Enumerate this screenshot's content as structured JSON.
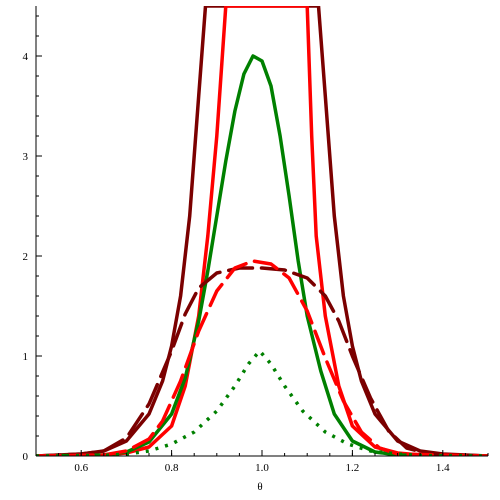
{
  "chart_data": {
    "type": "line",
    "xlabel": "θ",
    "ylabel": "",
    "xlim": [
      0.5,
      1.5
    ],
    "ylim": [
      0,
      4.5
    ],
    "x_ticks": [
      {
        "value": 0.6,
        "label": "0.6"
      },
      {
        "value": 0.8,
        "label": "0.8"
      },
      {
        "value": 1.0,
        "label": "1.0"
      },
      {
        "value": 1.2,
        "label": "1.2"
      },
      {
        "value": 1.4,
        "label": "1.4"
      }
    ],
    "y_ticks": [
      {
        "value": 0,
        "label": "0"
      },
      {
        "value": 1,
        "label": "1"
      },
      {
        "value": 2,
        "label": "2"
      },
      {
        "value": 3,
        "label": "3"
      },
      {
        "value": 4,
        "label": "4"
      }
    ],
    "series": [
      {
        "color": "#7b0000",
        "dash": "solid",
        "width": 3.5,
        "points": [
          [
            0.5,
            0.0
          ],
          [
            0.6,
            0.02
          ],
          [
            0.65,
            0.05
          ],
          [
            0.7,
            0.15
          ],
          [
            0.75,
            0.42
          ],
          [
            0.78,
            0.75
          ],
          [
            0.8,
            1.1
          ],
          [
            0.82,
            1.6
          ],
          [
            0.84,
            2.4
          ],
          [
            0.86,
            3.6
          ],
          [
            0.875,
            4.5
          ],
          [
            1.125,
            4.5
          ],
          [
            1.14,
            3.6
          ],
          [
            1.16,
            2.4
          ],
          [
            1.18,
            1.6
          ],
          [
            1.2,
            1.1
          ],
          [
            1.22,
            0.75
          ],
          [
            1.25,
            0.42
          ],
          [
            1.3,
            0.15
          ],
          [
            1.35,
            0.05
          ],
          [
            1.4,
            0.02
          ],
          [
            1.5,
            0.0
          ]
        ]
      },
      {
        "color": "#ff0000",
        "dash": "solid",
        "width": 3.5,
        "points": [
          [
            0.5,
            0.0
          ],
          [
            0.65,
            0.01
          ],
          [
            0.7,
            0.03
          ],
          [
            0.75,
            0.09
          ],
          [
            0.8,
            0.3
          ],
          [
            0.83,
            0.7
          ],
          [
            0.86,
            1.4
          ],
          [
            0.88,
            2.2
          ],
          [
            0.9,
            3.2
          ],
          [
            0.92,
            4.5
          ],
          [
            1.1,
            4.5
          ],
          [
            1.11,
            3.2
          ],
          [
            1.12,
            2.2
          ],
          [
            1.14,
            1.4
          ],
          [
            1.17,
            0.7
          ],
          [
            1.2,
            0.3
          ],
          [
            1.25,
            0.09
          ],
          [
            1.3,
            0.03
          ],
          [
            1.35,
            0.01
          ],
          [
            1.5,
            0.0
          ]
        ]
      },
      {
        "color": "#008000",
        "dash": "solid",
        "width": 3.5,
        "points": [
          [
            0.5,
            0.0
          ],
          [
            0.65,
            0.01
          ],
          [
            0.7,
            0.04
          ],
          [
            0.75,
            0.14
          ],
          [
            0.8,
            0.42
          ],
          [
            0.83,
            0.78
          ],
          [
            0.86,
            1.35
          ],
          [
            0.88,
            1.85
          ],
          [
            0.9,
            2.4
          ],
          [
            0.92,
            2.95
          ],
          [
            0.94,
            3.45
          ],
          [
            0.96,
            3.82
          ],
          [
            0.98,
            4.0
          ],
          [
            1.0,
            3.95
          ],
          [
            1.02,
            3.7
          ],
          [
            1.04,
            3.2
          ],
          [
            1.06,
            2.6
          ],
          [
            1.08,
            1.95
          ],
          [
            1.1,
            1.4
          ],
          [
            1.13,
            0.85
          ],
          [
            1.16,
            0.42
          ],
          [
            1.2,
            0.15
          ],
          [
            1.25,
            0.04
          ],
          [
            1.3,
            0.01
          ],
          [
            1.5,
            0.0
          ]
        ]
      },
      {
        "color": "#7b0000",
        "dash": "long",
        "width": 3.5,
        "points": [
          [
            0.5,
            0.0
          ],
          [
            0.6,
            0.02
          ],
          [
            0.65,
            0.05
          ],
          [
            0.7,
            0.18
          ],
          [
            0.75,
            0.52
          ],
          [
            0.8,
            1.05
          ],
          [
            0.83,
            1.42
          ],
          [
            0.86,
            1.68
          ],
          [
            0.9,
            1.83
          ],
          [
            0.95,
            1.88
          ],
          [
            1.0,
            1.88
          ],
          [
            1.05,
            1.86
          ],
          [
            1.1,
            1.78
          ],
          [
            1.14,
            1.6
          ],
          [
            1.17,
            1.35
          ],
          [
            1.2,
            1.0
          ],
          [
            1.24,
            0.58
          ],
          [
            1.28,
            0.25
          ],
          [
            1.32,
            0.08
          ],
          [
            1.37,
            0.02
          ],
          [
            1.5,
            0.0
          ]
        ]
      },
      {
        "color": "#ff0000",
        "dash": "long",
        "width": 3.5,
        "points": [
          [
            0.5,
            0.0
          ],
          [
            0.65,
            0.01
          ],
          [
            0.7,
            0.05
          ],
          [
            0.75,
            0.17
          ],
          [
            0.78,
            0.35
          ],
          [
            0.82,
            0.75
          ],
          [
            0.86,
            1.25
          ],
          [
            0.9,
            1.65
          ],
          [
            0.94,
            1.88
          ],
          [
            0.98,
            1.95
          ],
          [
            1.02,
            1.92
          ],
          [
            1.06,
            1.78
          ],
          [
            1.1,
            1.45
          ],
          [
            1.14,
            0.98
          ],
          [
            1.18,
            0.55
          ],
          [
            1.22,
            0.24
          ],
          [
            1.26,
            0.08
          ],
          [
            1.3,
            0.02
          ],
          [
            1.5,
            0.0
          ]
        ]
      },
      {
        "color": "#008000",
        "dash": "dot",
        "width": 3.5,
        "points": [
          [
            0.5,
            0.0
          ],
          [
            0.65,
            0.005
          ],
          [
            0.7,
            0.02
          ],
          [
            0.75,
            0.05
          ],
          [
            0.8,
            0.12
          ],
          [
            0.85,
            0.24
          ],
          [
            0.9,
            0.45
          ],
          [
            0.94,
            0.7
          ],
          [
            0.97,
            0.92
          ],
          [
            0.995,
            1.05
          ],
          [
            1.02,
            0.92
          ],
          [
            1.05,
            0.7
          ],
          [
            1.09,
            0.45
          ],
          [
            1.14,
            0.24
          ],
          [
            1.19,
            0.12
          ],
          [
            1.24,
            0.05
          ],
          [
            1.3,
            0.02
          ],
          [
            1.35,
            0.005
          ],
          [
            1.5,
            0.0
          ]
        ]
      }
    ]
  }
}
